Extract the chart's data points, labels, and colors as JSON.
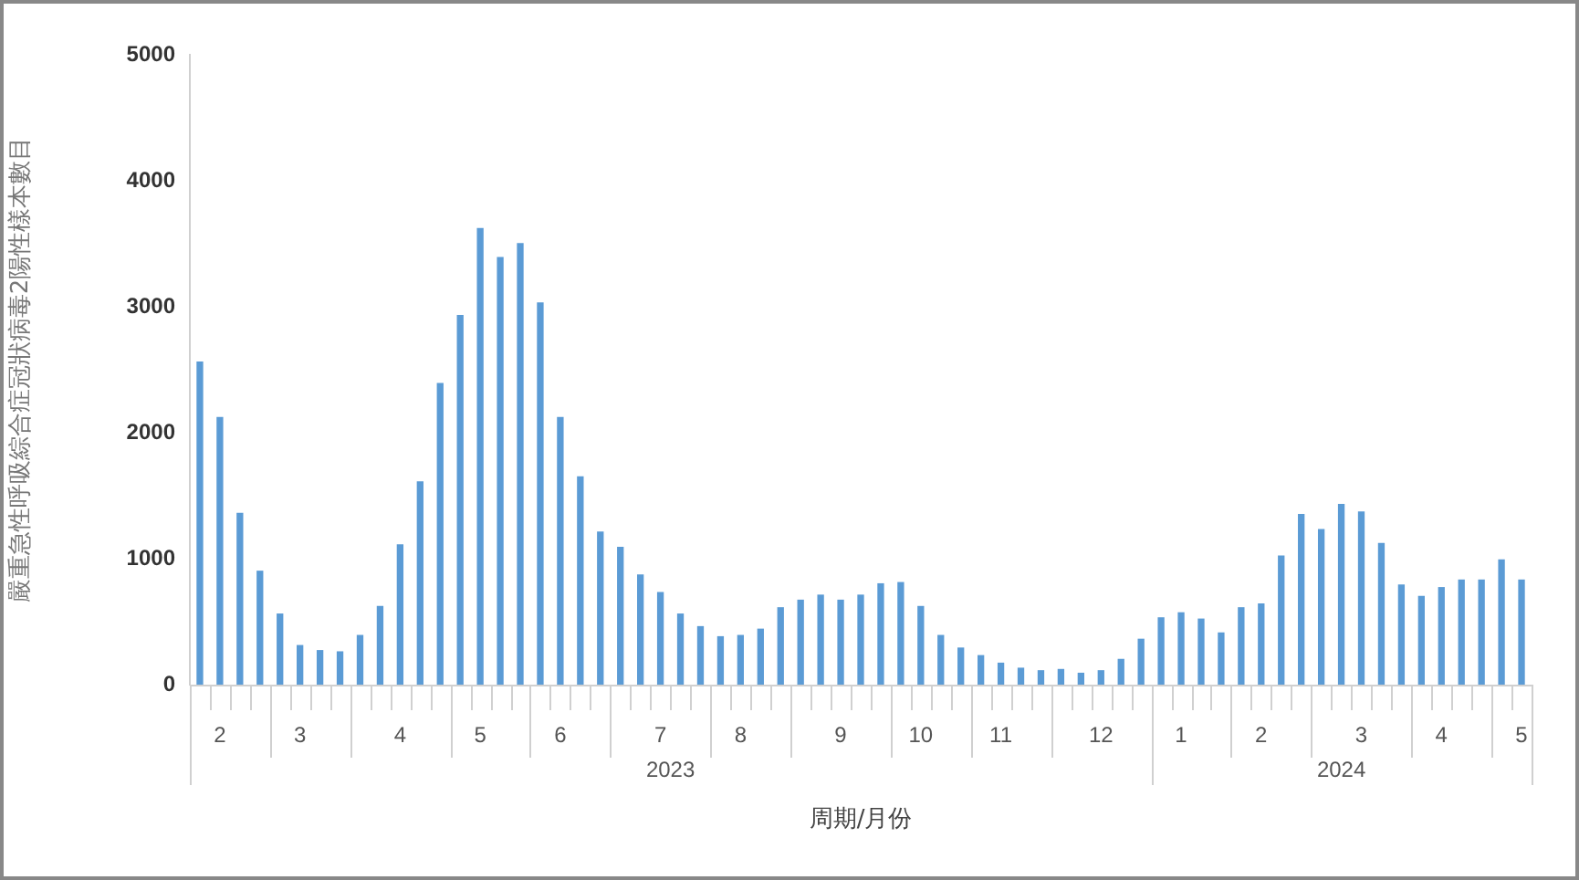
{
  "chart_data": {
    "type": "bar",
    "ylabel": "嚴重急性呼吸綜合症冠狀病毒2陽性樣本數目",
    "xlabel": "周期/月份",
    "categories": [
      null,
      "2",
      null,
      null,
      null,
      "3",
      null,
      null,
      null,
      null,
      "4",
      null,
      null,
      null,
      "5",
      null,
      null,
      null,
      "6",
      null,
      null,
      null,
      null,
      "7",
      null,
      null,
      null,
      "8",
      null,
      null,
      null,
      null,
      "9",
      null,
      null,
      null,
      "10",
      null,
      null,
      null,
      "11",
      null,
      null,
      null,
      null,
      "12",
      null,
      null,
      null,
      "1",
      null,
      null,
      null,
      "2",
      null,
      null,
      null,
      null,
      "3",
      null,
      null,
      null,
      "4",
      null,
      null,
      null,
      "5"
    ],
    "values": [
      2560,
      2120,
      1360,
      900,
      560,
      310,
      270,
      260,
      390,
      620,
      1110,
      1610,
      2390,
      2930,
      3620,
      3390,
      3500,
      3030,
      2120,
      1650,
      1210,
      1090,
      870,
      730,
      560,
      460,
      380,
      390,
      440,
      610,
      670,
      710,
      670,
      710,
      800,
      810,
      620,
      390,
      290,
      230,
      170,
      130,
      110,
      120,
      90,
      110,
      200,
      360,
      530,
      570,
      520,
      410,
      610,
      640,
      1020,
      1350,
      1230,
      1430,
      1370,
      1120,
      790,
      700,
      770,
      830,
      830,
      990,
      830
    ],
    "color": "#5b9bd5",
    "ylim": [
      0,
      5000
    ],
    "yticks": [
      0,
      1000,
      2000,
      3000,
      4000,
      5000
    ],
    "grid": false,
    "legend": false,
    "annotations": [
      "2023",
      "2024"
    ]
  }
}
